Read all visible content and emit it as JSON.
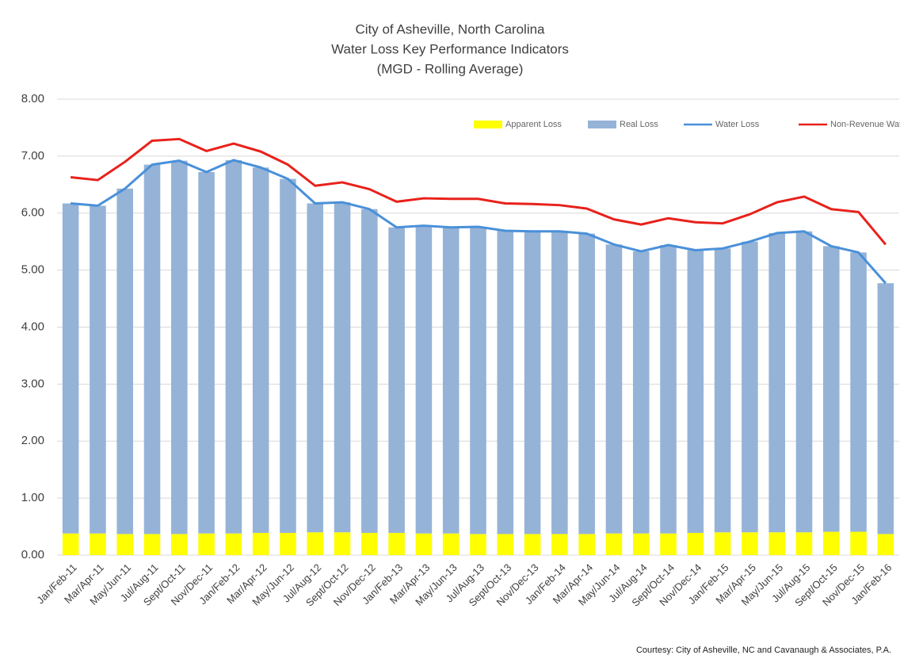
{
  "chart_data": {
    "type": "bar",
    "stacked": true,
    "title": [
      "City of Asheville, North Carolina",
      "Water Loss Key Performance Indicators",
      "(MGD - Rolling Average)"
    ],
    "footnote": "Courtesy: City of Asheville, NC and Cavanaugh & Associates, P.A.",
    "categories": [
      "Jan/Feb-11",
      "Mar/Apr-11",
      "May/Jun-11",
      "Jul/Aug-11",
      "Sept/Oct-11",
      "Nov/Dec-11",
      "Jan/Feb-12",
      "Mar/Apr-12",
      "May/Jun-12",
      "Jul/Aug-12",
      "Sept/Oct-12",
      "Nov/Dec-12",
      "Jan/Feb-13",
      "Mar/Apr-13",
      "May/Jun-13",
      "Jul/Aug-13",
      "Sept/Oct-13",
      "Nov/Dec-13",
      "Jan/Feb-14",
      "Mar/Apr-14",
      "May/Jun-14",
      "Jul/Aug-14",
      "Sept/Oct-14",
      "Nov/Dec-14",
      "Jan/Feb-15",
      "Mar/Apr-15",
      "May/Jun-15",
      "Jul/Aug-15",
      "Sept/Oct-15",
      "Nov/Dec-15",
      "Jan/Feb-16"
    ],
    "series": [
      {
        "name": "Apparent Loss",
        "type": "bar",
        "color": "#ffff00",
        "values": [
          0.38,
          0.38,
          0.37,
          0.37,
          0.37,
          0.38,
          0.38,
          0.39,
          0.39,
          0.4,
          0.4,
          0.39,
          0.39,
          0.38,
          0.38,
          0.37,
          0.37,
          0.37,
          0.37,
          0.37,
          0.38,
          0.38,
          0.38,
          0.39,
          0.4,
          0.4,
          0.4,
          0.4,
          0.41,
          0.41,
          0.37
        ]
      },
      {
        "name": "Real Loss",
        "type": "bar",
        "color": "#95b3d7",
        "values": [
          5.79,
          5.75,
          6.06,
          6.48,
          6.55,
          6.34,
          6.55,
          6.41,
          6.21,
          5.77,
          5.79,
          5.68,
          5.36,
          5.4,
          5.37,
          5.39,
          5.32,
          5.31,
          5.31,
          5.27,
          5.07,
          4.95,
          5.06,
          4.96,
          4.98,
          5.1,
          5.25,
          5.28,
          5.01,
          4.9,
          4.4
        ]
      },
      {
        "name": "Water Loss",
        "type": "line",
        "color": "#4a90d9",
        "values": [
          6.17,
          6.13,
          6.43,
          6.85,
          6.92,
          6.72,
          6.93,
          6.8,
          6.6,
          6.17,
          6.19,
          6.07,
          5.75,
          5.78,
          5.75,
          5.76,
          5.69,
          5.68,
          5.68,
          5.64,
          5.45,
          5.33,
          5.44,
          5.35,
          5.38,
          5.5,
          5.65,
          5.68,
          5.42,
          5.31,
          4.77
        ]
      },
      {
        "name": "Non-Revenue Water",
        "type": "line",
        "color": "#e8211b",
        "values": [
          6.63,
          6.58,
          6.9,
          7.27,
          7.3,
          7.09,
          7.22,
          7.08,
          6.85,
          6.48,
          6.54,
          6.42,
          6.2,
          6.26,
          6.25,
          6.25,
          6.17,
          6.16,
          6.14,
          6.08,
          5.89,
          5.8,
          5.91,
          5.84,
          5.82,
          5.98,
          6.19,
          6.29,
          6.07,
          6.02,
          5.45
        ]
      }
    ],
    "ylim": [
      0,
      8
    ],
    "yticks": [
      {
        "value": 0,
        "label": "0.00"
      },
      {
        "value": 1,
        "label": "1.00"
      },
      {
        "value": 2,
        "label": "2.00"
      },
      {
        "value": 3,
        "label": "3.00"
      },
      {
        "value": 4,
        "label": "4.00"
      },
      {
        "value": 5,
        "label": "5.00"
      },
      {
        "value": 6,
        "label": "6.00"
      },
      {
        "value": 7,
        "label": "7.00"
      },
      {
        "value": 8,
        "label": "8.00"
      }
    ],
    "grid": true,
    "legend": "top-right"
  }
}
